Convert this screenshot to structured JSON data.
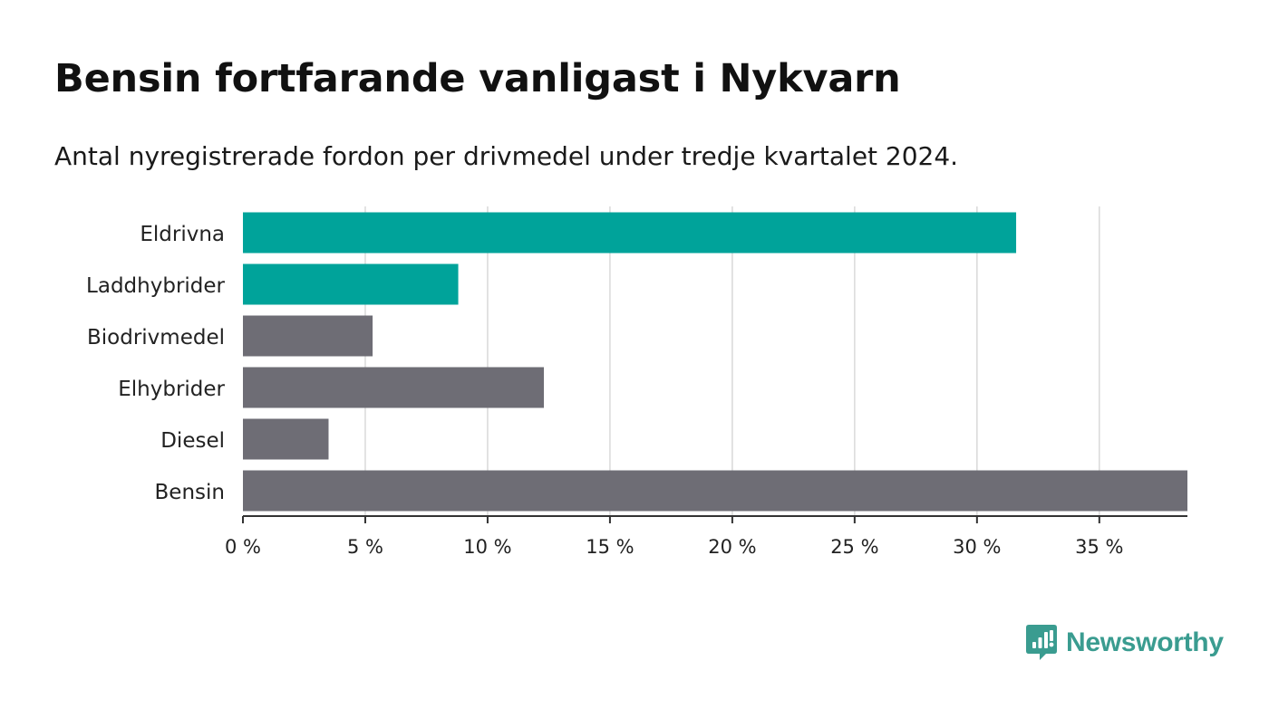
{
  "header": {
    "title": "Bensin fortfarande vanligast i Nykvarn",
    "subtitle": "Antal nyregistrerade fordon per drivmedel under tredje kvartalet 2024."
  },
  "chart_data": {
    "type": "bar",
    "orientation": "horizontal",
    "categories": [
      "Eldrivna",
      "Laddhybrider",
      "Biodrivmedel",
      "Elhybrider",
      "Diesel",
      "Bensin"
    ],
    "values": [
      31.6,
      8.8,
      5.3,
      12.3,
      3.5,
      38.6
    ],
    "colors": [
      "#00a39a",
      "#00a39a",
      "#6e6d75",
      "#6e6d75",
      "#6e6d75",
      "#6e6d75"
    ],
    "xticks": [
      0,
      5,
      10,
      15,
      20,
      25,
      30,
      35
    ],
    "tick_suffix": " %",
    "xlim": [
      0,
      38.6
    ],
    "grid": true
  },
  "brand": {
    "name": "Newsworthy",
    "logo_icon": "newsworthy-logo-icon",
    "color": "#3a9c90"
  }
}
